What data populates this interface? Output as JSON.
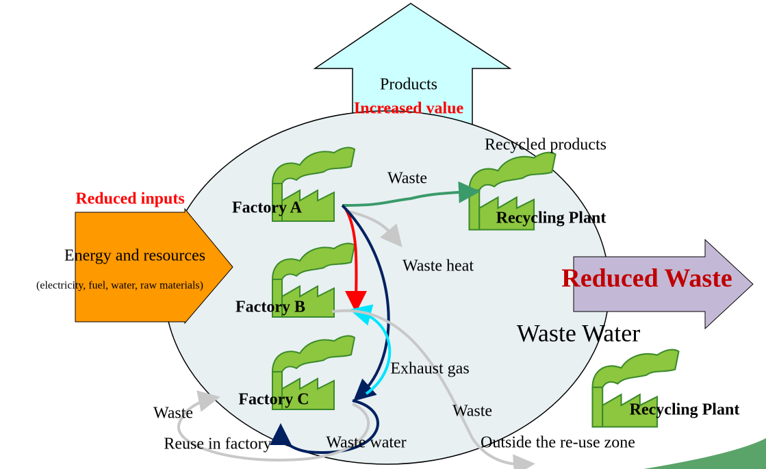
{
  "labels": {
    "products": "Products",
    "increased_value": "Increased value",
    "recycled_products": "Recycled products",
    "waste_top": "Waste",
    "reduced_inputs": "Reduced inputs",
    "factory_a": "Factory A",
    "recycling_plant_1": "Recycling Plant",
    "energy": "Energy and resources",
    "energy_detail": "(electricity, fuel, water, raw materials)",
    "waste_heat": "Waste heat",
    "reduced_waste": "Reduced Waste",
    "factory_b": "Factory B",
    "waste_water_zone": "Waste Water",
    "exhaust_gas": "Exhaust gas",
    "waste_left": "Waste",
    "factory_c": "Factory C",
    "waste_right": "Waste",
    "recycling_plant_2": "Recycling Plant",
    "reuse": "Reuse in factory",
    "waste_water": "Waste water",
    "outside": "Outside the re-use zone"
  }
}
